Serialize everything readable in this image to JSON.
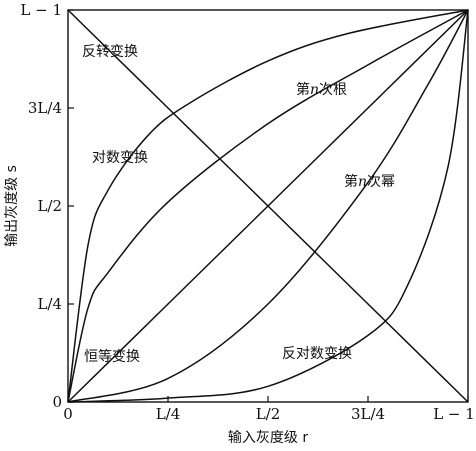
{
  "chart_data": {
    "type": "line",
    "title": "",
    "xlabel": "输入灰度级 r",
    "ylabel": "输出灰度级 s",
    "xlim": [
      0,
      1
    ],
    "ylim": [
      0,
      1
    ],
    "grid": false,
    "x_ticks": [
      {
        "value": 0,
        "label": "0"
      },
      {
        "value": 0.25,
        "label": "L/4"
      },
      {
        "value": 0.5,
        "label": "L/2"
      },
      {
        "value": 0.75,
        "label": "3L/4"
      },
      {
        "value": 1,
        "label": "L − 1"
      }
    ],
    "y_ticks": [
      {
        "value": 0,
        "label": "0"
      },
      {
        "value": 0.25,
        "label": "L/4"
      },
      {
        "value": 0.5,
        "label": "L/2"
      },
      {
        "value": 0.75,
        "label": "3L/4"
      },
      {
        "value": 1,
        "label": "L − 1"
      }
    ],
    "series": [
      {
        "name": "反转变换",
        "x": [
          0,
          0.25,
          0.5,
          0.75,
          1
        ],
        "y": [
          1,
          0.75,
          0.5,
          0.25,
          0
        ]
      },
      {
        "name": "对数变换",
        "x": [
          0,
          0.05,
          0.1,
          0.2,
          0.3,
          0.5,
          0.7,
          1
        ],
        "y": [
          0,
          0.4,
          0.54,
          0.68,
          0.76,
          0.87,
          0.94,
          1
        ]
      },
      {
        "name": "第n次根",
        "x": [
          0,
          0.05,
          0.1,
          0.25,
          0.5,
          0.75,
          1
        ],
        "y": [
          0,
          0.24,
          0.33,
          0.51,
          0.71,
          0.86,
          1
        ]
      },
      {
        "name": "恒等变换",
        "x": [
          0,
          0.25,
          0.5,
          0.75,
          1
        ],
        "y": [
          0,
          0.25,
          0.5,
          0.75,
          1
        ]
      },
      {
        "name": "第n次幂",
        "x": [
          0,
          0.25,
          0.5,
          0.75,
          0.9,
          1
        ],
        "y": [
          0,
          0.06,
          0.25,
          0.56,
          0.81,
          1
        ]
      },
      {
        "name": "反对数变换",
        "x": [
          0,
          0.25,
          0.5,
          0.75,
          0.85,
          0.95,
          1
        ],
        "y": [
          0,
          0.01,
          0.04,
          0.17,
          0.3,
          0.6,
          1
        ]
      }
    ],
    "curve_labels": [
      {
        "text": "反转变换",
        "series": 0
      },
      {
        "text": "对数变换",
        "series": 1
      },
      {
        "text": "第n次根",
        "series": 2
      },
      {
        "text": "恒等变换",
        "series": 3
      },
      {
        "text": "第n次幂",
        "series": 4
      },
      {
        "text": "反对数变换",
        "series": 5
      }
    ]
  }
}
